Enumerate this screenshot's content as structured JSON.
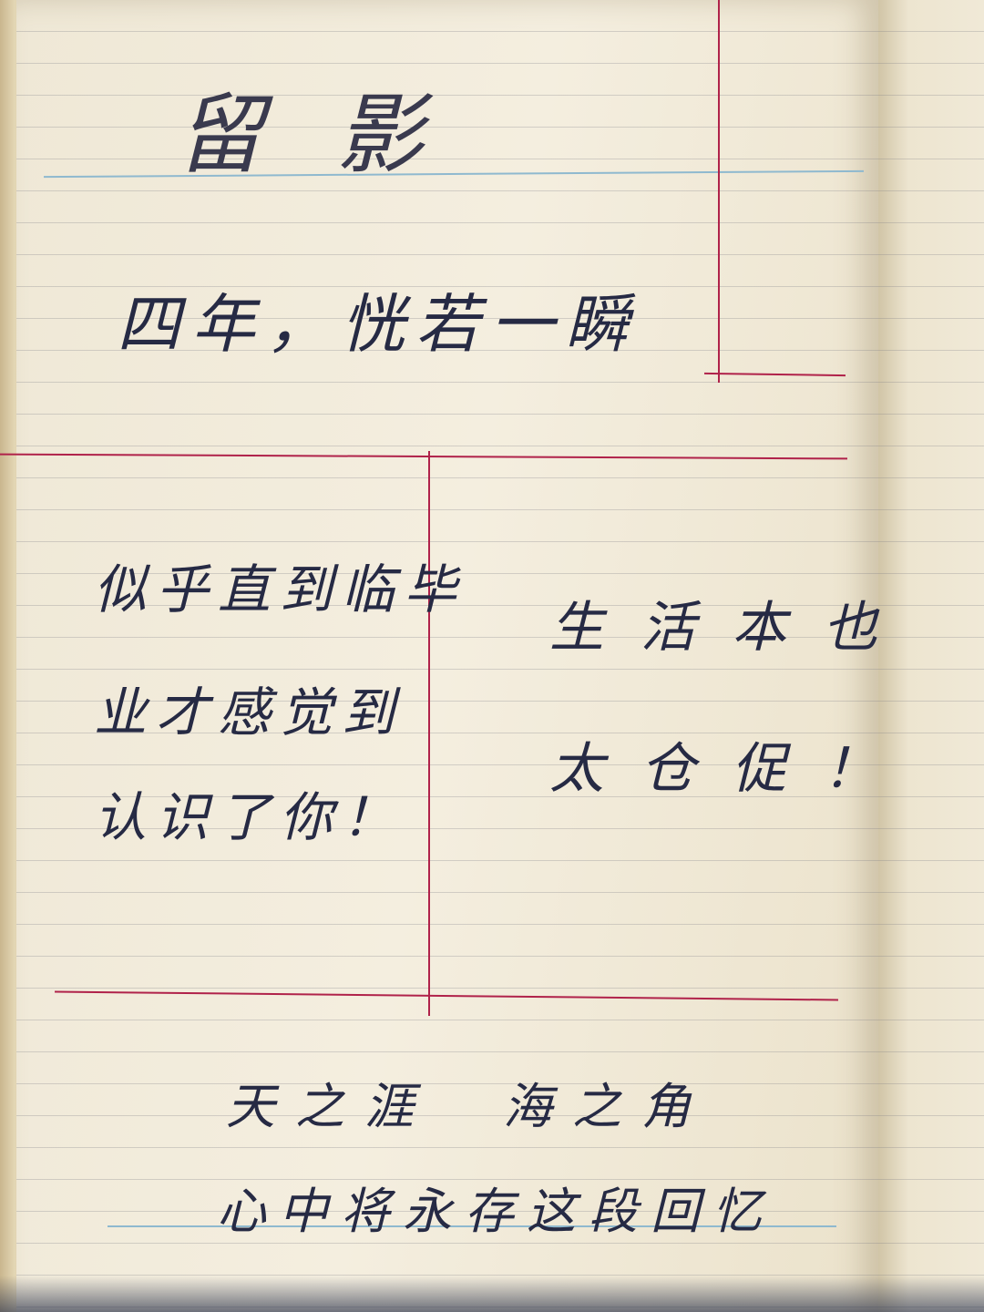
{
  "notebook": {
    "title": "留影",
    "line1": "四年，恍若一瞬",
    "left_col": [
      "似乎直到临毕",
      "业才感觉到",
      "认识了你！"
    ],
    "right_col": [
      "生活本也",
      "太仓促！"
    ],
    "bottom_line1": "天之涯　海之角",
    "bottom_line2": "心中将永存这段回忆"
  },
  "colors": {
    "ink": "#262a44",
    "red_rule": "#b0224a",
    "blue_rule": "#8fb9cf",
    "paper": "#f4eedf"
  }
}
